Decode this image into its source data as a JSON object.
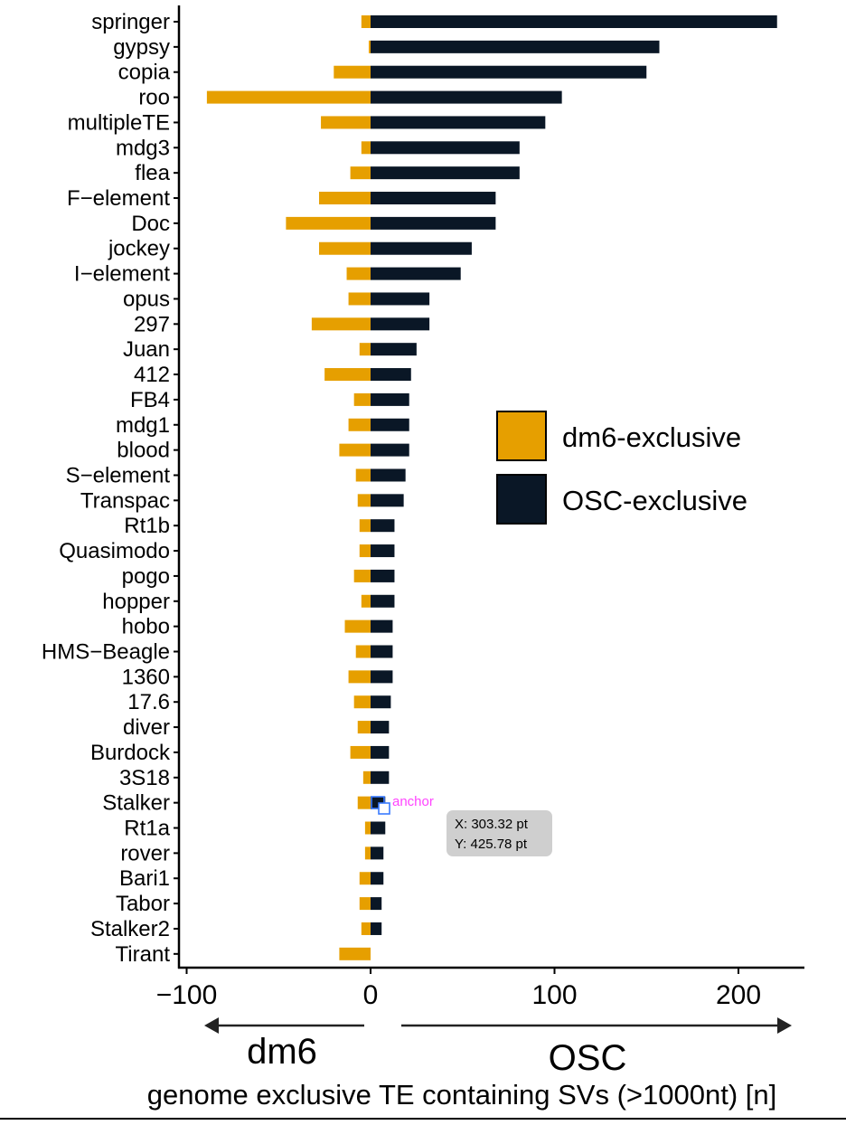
{
  "chart_data": {
    "type": "bar",
    "orientation": "horizontal",
    "stacked": "diverging",
    "categories": [
      "springer",
      "gypsy",
      "copia",
      "roo",
      "multipleTE",
      "mdg3",
      "flea",
      "F−element",
      "Doc",
      "jockey",
      "I−element",
      "opus",
      "297",
      "Juan",
      "412",
      "FB4",
      "mdg1",
      "blood",
      "S−element",
      "Transpac",
      "Rt1b",
      "Quasimodo",
      "pogo",
      "hopper",
      "hobo",
      "HMS−Beagle",
      "1360",
      "17.6",
      "diver",
      "Burdock",
      "3S18",
      "Stalker",
      "Rt1a",
      "rover",
      "Bari1",
      "Tabor",
      "Stalker2",
      "Tirant"
    ],
    "series": [
      {
        "name": "dm6-exclusive",
        "color": "#E69F00",
        "values": [
          -5,
          -1,
          -20,
          -89,
          -27,
          -5,
          -11,
          -28,
          -46,
          -28,
          -13,
          -12,
          -32,
          -6,
          -25,
          -9,
          -12,
          -17,
          -8,
          -7,
          -6,
          -6,
          -9,
          -5,
          -14,
          -8,
          -12,
          -9,
          -7,
          -11,
          -4,
          -7,
          -3,
          -3,
          -6,
          -6,
          -5,
          -17
        ]
      },
      {
        "name": "OSC-exclusive",
        "color": "#0A1726",
        "values": [
          221,
          157,
          150,
          104,
          95,
          81,
          81,
          68,
          68,
          55,
          49,
          32,
          32,
          25,
          22,
          21,
          21,
          21,
          19,
          18,
          13,
          13,
          13,
          13,
          12,
          12,
          12,
          11,
          10,
          10,
          10,
          8,
          8,
          7,
          7,
          6,
          6,
          0
        ]
      }
    ],
    "xlabel": "genome exclusive TE containing SVs (>1000nt) [n]",
    "ylabel": "",
    "xlim": [
      -101,
      236
    ],
    "xticks": [
      -100,
      0,
      100,
      200
    ],
    "xtick_labels": [
      "−100",
      "0",
      "100",
      "200"
    ],
    "grid": false,
    "legend_position": "right",
    "legend": [
      "dm6-exclusive",
      "OSC-exclusive"
    ],
    "direction_labels": {
      "left": "dm6",
      "right": "OSC"
    }
  },
  "overlay": {
    "anchor_label": "anchor",
    "tooltip_x": "X: 303.32 pt",
    "tooltip_y": "Y: 425.78 pt"
  }
}
